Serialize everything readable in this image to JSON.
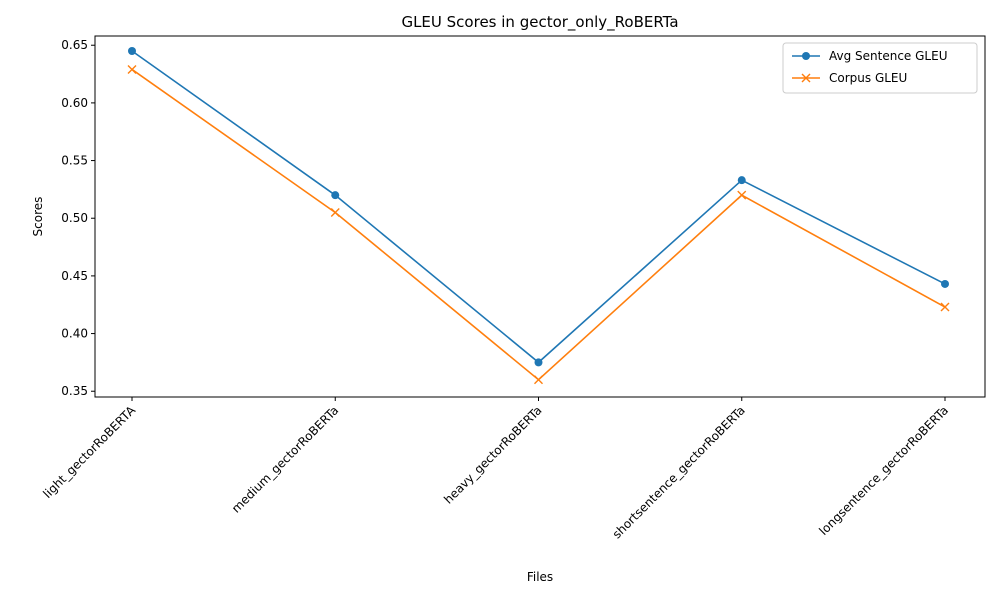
{
  "chart_data": {
    "type": "line",
    "title": "GLEU Scores in gector_only_RoBERTa",
    "xlabel": "Files",
    "ylabel": "Scores",
    "categories": [
      "light_gectorRoBERTA",
      "medium_gectorRoBERTa",
      "heavy_gectorRoBERTa",
      "shortsentence_gectorRoBERTa",
      "longsentence_gectorRoBERTa"
    ],
    "series": [
      {
        "name": "Avg Sentence GLEU",
        "values": [
          0.645,
          0.52,
          0.375,
          0.533,
          0.443
        ],
        "color": "#1f77b4",
        "marker": "circle"
      },
      {
        "name": "Corpus GLEU",
        "values": [
          0.629,
          0.505,
          0.36,
          0.52,
          0.423
        ],
        "color": "#ff7f0e",
        "marker": "x"
      }
    ],
    "ylim": [
      0.345,
      0.658
    ],
    "yticks": [
      "0.35",
      "0.40",
      "0.45",
      "0.50",
      "0.55",
      "0.60",
      "0.65"
    ],
    "legend_position": "top-right",
    "grid": false
  }
}
